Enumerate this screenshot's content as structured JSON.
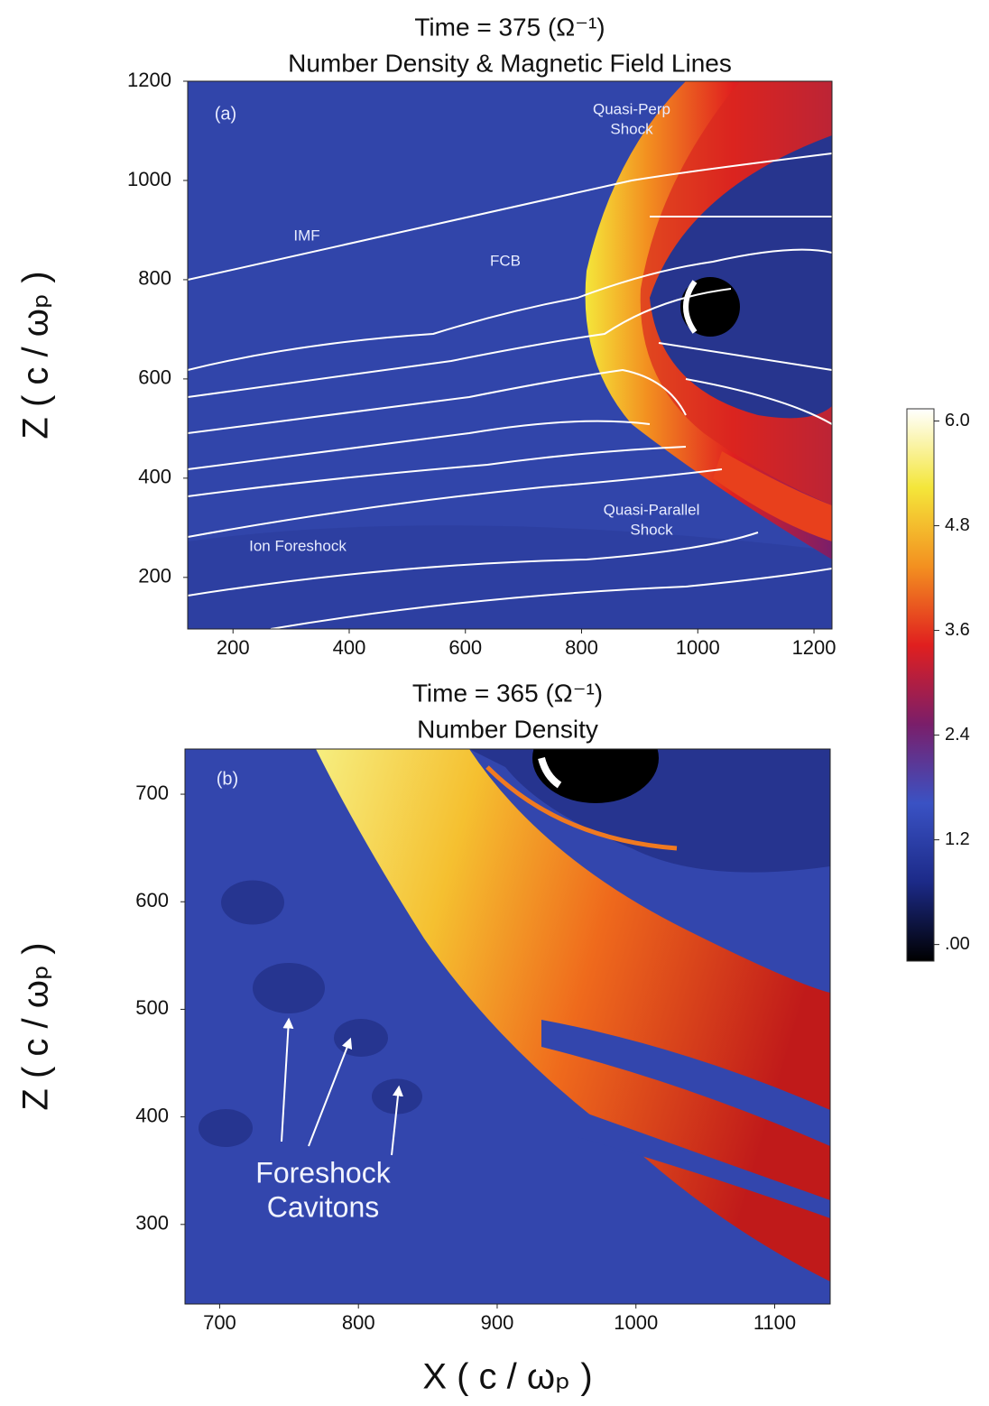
{
  "chart_data": [
    {
      "type": "heatmap",
      "title": "Time = 375 (Ω⁻¹)",
      "subtitle": "Number Density & Magnetic Field Lines",
      "ylabel": "Z ( c / ωₚ )",
      "xlim": [
        122,
        1231
      ],
      "xticks": [
        200,
        400,
        600,
        800,
        1000,
        1200
      ],
      "ylim": [
        96,
        1200
      ],
      "yticks": [
        200,
        400,
        600,
        800,
        1000,
        1200
      ],
      "panel_label": "(a)",
      "annotations": [
        {
          "lines": [
            "Quasi-Perp",
            "Shock"
          ]
        },
        {
          "lines": [
            "IMF"
          ]
        },
        {
          "lines": [
            "FCB"
          ]
        },
        {
          "lines": [
            "Ion Foreshock"
          ]
        },
        {
          "lines": [
            "Quasi-Parallel",
            "Shock"
          ]
        }
      ]
    },
    {
      "type": "heatmap",
      "title": "Time = 365 (Ω⁻¹)",
      "subtitle": "Number Density",
      "ylabel": "Z ( c / ωₚ )",
      "xlabel": "X  ( c / ωₚ )",
      "xlim": [
        675,
        1140
      ],
      "xticks": [
        700,
        800,
        900,
        1000,
        1100
      ],
      "ylim": [
        226,
        742
      ],
      "yticks": [
        300,
        400,
        500,
        600,
        700
      ],
      "panel_label": "(b)",
      "annotations": [
        {
          "lines": [
            "Foreshock",
            "Cavitons"
          ]
        }
      ]
    },
    {
      "type": "colorbar",
      "zlim": [
        -0.19,
        6.14
      ],
      "zticks": [
        {
          "value": 0,
          "label": ".00"
        },
        1.2,
        2.4,
        3.6,
        4.8,
        {
          "value": 6,
          "label": "6.0"
        }
      ],
      "colormap": [
        "#000000",
        "#1c2a88",
        "#3a52c4",
        "#7a1e6a",
        "#e01f1f",
        "#f39020",
        "#f4e63a",
        "#ffffff"
      ]
    }
  ]
}
